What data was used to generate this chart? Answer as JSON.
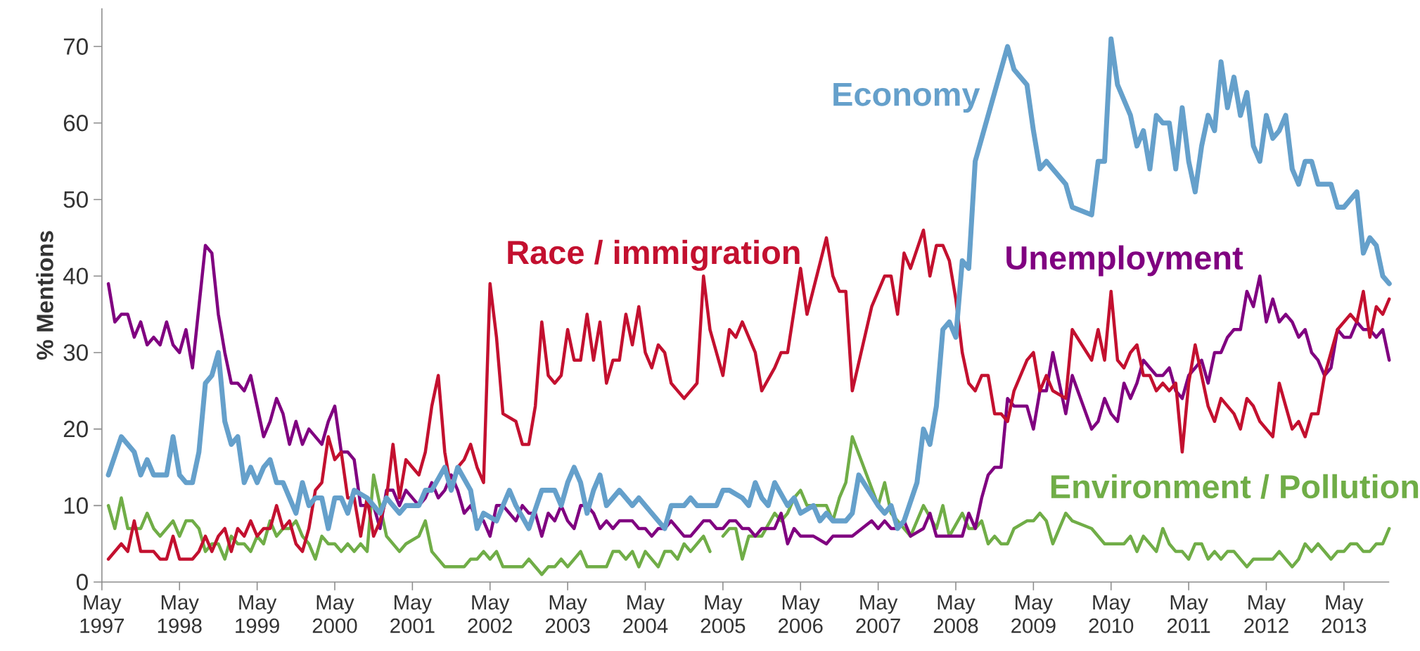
{
  "chart_data": {
    "type": "line",
    "ylabel": "% Mentions",
    "xlim": [
      "1997-05",
      "2013-12"
    ],
    "ylim": [
      0,
      75
    ],
    "xticks": [
      {
        "value": "1997-05",
        "label": "May 1997"
      },
      {
        "value": "1998-05",
        "label": "May 1998"
      },
      {
        "value": "1999-05",
        "label": "May 1999"
      },
      {
        "value": "2000-05",
        "label": "May 2000"
      },
      {
        "value": "2001-05",
        "label": "May 2001"
      },
      {
        "value": "2002-05",
        "label": "May 2002"
      },
      {
        "value": "2003-05",
        "label": "May 2003"
      },
      {
        "value": "2004-05",
        "label": "May 2004"
      },
      {
        "value": "2005-05",
        "label": "May 2005"
      },
      {
        "value": "2006-05",
        "label": "May 2006"
      },
      {
        "value": "2007-05",
        "label": "May 2007"
      },
      {
        "value": "2008-05",
        "label": "May 2008"
      },
      {
        "value": "2009-05",
        "label": "May 2009"
      },
      {
        "value": "2010-05",
        "label": "May 2010"
      },
      {
        "value": "2011-05",
        "label": "May 2011"
      },
      {
        "value": "2012-05",
        "label": "May 2012"
      },
      {
        "value": "2013-05",
        "label": "May 2013"
      }
    ],
    "yticks": [
      0,
      10,
      20,
      30,
      40,
      50,
      60,
      70
    ],
    "series": [
      {
        "name": "Economy",
        "color": "#65a0cb",
        "x": [
          "1997-06",
          "1997-08",
          "1997-10",
          "1997-11",
          "1997-12",
          "1998-01",
          "1998-03",
          "1998-04",
          "1998-05",
          "1998-06",
          "1998-07",
          "1998-08",
          "1998-09",
          "1998-10",
          "1998-11",
          "1998-12",
          "1999-01",
          "1999-02",
          "1999-03",
          "1999-04",
          "1999-05",
          "1999-06",
          "1999-07",
          "1999-08",
          "1999-09",
          "1999-11",
          "1999-12",
          "2000-01",
          "2000-02",
          "2000-03",
          "2000-04",
          "2000-05",
          "2000-06",
          "2000-07",
          "2000-08",
          "2000-10",
          "2000-11",
          "2000-12",
          "2001-01",
          "2001-03",
          "2001-04",
          "2001-06",
          "2001-07",
          "2001-08",
          "2001-10",
          "2001-11",
          "2001-12",
          "2002-02",
          "2002-03",
          "2002-04",
          "2002-06",
          "2002-08",
          "2002-09",
          "2002-11",
          "2003-01",
          "2003-03",
          "2003-04",
          "2003-05",
          "2003-06",
          "2003-07",
          "2003-08",
          "2003-09",
          "2003-10",
          "2003-11",
          "2004-01",
          "2004-03",
          "2004-04",
          "2004-06",
          "2004-08",
          "2004-09",
          "2004-11",
          "2004-12",
          "2005-01",
          "2005-04",
          "2005-05",
          "2005-06",
          "2005-08",
          "2005-09",
          "2005-10",
          "2005-11",
          "2005-12",
          "2006-01",
          "2006-03",
          "2006-04",
          "2006-05",
          "2006-07",
          "2006-08",
          "2006-09",
          "2006-10",
          "2006-12",
          "2007-01",
          "2007-02",
          "2007-05",
          "2007-06",
          "2007-07",
          "2007-08",
          "2007-09",
          "2007-11",
          "2007-12",
          "2008-01",
          "2008-02",
          "2008-03",
          "2008-04",
          "2008-05",
          "2008-06",
          "2008-07",
          "2008-08",
          "2008-09",
          "2009-01",
          "2009-02",
          "2009-04",
          "2009-05",
          "2009-06",
          "2009-07",
          "2009-10",
          "2009-11",
          "2010-02",
          "2010-03",
          "2010-04",
          "2010-05",
          "2010-06",
          "2010-08",
          "2010-09",
          "2010-10",
          "2010-11",
          "2010-12",
          "2011-01",
          "2011-02",
          "2011-03",
          "2011-04",
          "2011-05",
          "2011-06",
          "2011-07",
          "2011-08",
          "2011-09",
          "2011-10",
          "2011-11",
          "2011-12",
          "2012-01",
          "2012-02",
          "2012-03",
          "2012-04",
          "2012-05",
          "2012-06",
          "2012-07",
          "2012-08",
          "2012-09",
          "2012-10",
          "2012-11",
          "2012-12",
          "2013-01",
          "2013-03",
          "2013-04",
          "2013-05",
          "2013-07",
          "2013-08",
          "2013-09",
          "2013-10",
          "2013-11",
          "2013-12"
        ],
        "values": [
          14,
          19,
          17,
          14,
          16,
          14,
          14,
          19,
          14,
          13,
          13,
          17,
          26,
          27,
          30,
          21,
          18,
          19,
          13,
          15,
          13,
          15,
          16,
          13,
          13,
          9,
          13,
          10,
          11,
          11,
          7,
          11,
          11,
          9,
          12,
          11,
          10,
          9,
          11,
          9,
          10,
          10,
          12,
          12,
          15,
          12,
          15,
          12,
          7,
          9,
          8,
          12,
          10,
          7,
          12,
          12,
          10,
          13,
          15,
          13,
          9,
          12,
          14,
          10,
          12,
          10,
          11,
          9,
          7,
          10,
          10,
          11,
          10,
          10,
          12,
          12,
          11,
          10,
          13,
          11,
          10,
          13,
          10,
          11,
          9,
          10,
          8,
          9,
          8,
          8,
          9,
          14,
          10,
          9,
          10,
          7,
          8,
          13,
          20,
          18,
          23,
          33,
          34,
          32,
          42,
          41,
          55,
          58,
          70,
          67,
          65,
          59,
          54,
          55,
          52,
          49,
          48,
          55,
          55,
          71,
          65,
          61,
          57,
          59,
          54,
          61,
          60,
          60,
          54,
          62,
          55,
          51,
          57,
          61,
          59,
          68,
          62,
          66,
          61,
          64,
          57,
          55,
          61,
          58,
          59,
          61,
          54,
          52,
          55,
          55,
          52,
          52,
          49,
          49,
          51,
          43,
          45,
          44,
          40,
          39
        ]
      },
      {
        "name": "Race / immigration",
        "color": "#c3102f",
        "x": [
          "1997-06",
          "1997-08",
          "1997-09",
          "1997-10",
          "1997-11",
          "1998-01",
          "1998-02",
          "1998-03",
          "1998-04",
          "1998-05",
          "1998-07",
          "1998-08",
          "1998-09",
          "1998-10",
          "1998-11",
          "1998-12",
          "1999-01",
          "1999-02",
          "1999-03",
          "1999-04",
          "1999-05",
          "1999-06",
          "1999-07",
          "1999-08",
          "1999-09",
          "1999-10",
          "1999-11",
          "1999-12",
          "2000-01",
          "2000-02",
          "2000-03",
          "2000-04",
          "2000-05",
          "2000-06",
          "2000-07",
          "2000-08",
          "2000-09",
          "2000-10",
          "2000-11",
          "2000-12",
          "2001-01",
          "2001-02",
          "2001-03",
          "2001-04",
          "2001-05",
          "2001-06",
          "2001-07",
          "2001-08",
          "2001-09",
          "2001-10",
          "2001-11",
          "2001-12",
          "2002-01",
          "2002-02",
          "2002-03",
          "2002-04",
          "2002-05",
          "2002-06",
          "2002-07",
          "2002-09",
          "2002-10",
          "2002-11",
          "2002-12",
          "2003-01",
          "2003-02",
          "2003-03",
          "2003-04",
          "2003-05",
          "2003-06",
          "2003-07",
          "2003-08",
          "2003-09",
          "2003-10",
          "2003-11",
          "2003-12",
          "2004-01",
          "2004-02",
          "2004-03",
          "2004-04",
          "2004-05",
          "2004-06",
          "2004-07",
          "2004-08",
          "2004-09",
          "2004-11",
          "2005-01",
          "2005-02",
          "2005-03",
          "2005-05",
          "2005-06",
          "2005-07",
          "2005-08",
          "2005-10",
          "2005-11",
          "2006-01",
          "2006-02",
          "2006-03",
          "2006-05",
          "2006-06",
          "2006-09",
          "2006-10",
          "2006-11",
          "2006-12",
          "2007-01",
          "2007-04",
          "2007-06",
          "2007-07",
          "2007-08",
          "2007-09",
          "2007-10",
          "2007-12",
          "2008-01",
          "2008-02",
          "2008-03",
          "2008-04",
          "2008-05",
          "2008-06",
          "2008-07",
          "2008-08",
          "2008-09",
          "2008-10",
          "2008-11",
          "2008-12",
          "2009-01",
          "2009-02",
          "2009-03",
          "2009-04",
          "2009-05",
          "2009-06",
          "2009-07",
          "2009-08",
          "2009-10",
          "2009-11",
          "2010-02",
          "2010-03",
          "2010-04",
          "2010-05",
          "2010-06",
          "2010-07",
          "2010-08",
          "2010-09",
          "2010-10",
          "2010-11",
          "2010-12",
          "2011-01",
          "2011-02",
          "2011-03",
          "2011-04",
          "2011-05",
          "2011-06",
          "2011-07",
          "2011-08",
          "2011-09",
          "2011-10",
          "2011-12",
          "2012-01",
          "2012-02",
          "2012-03",
          "2012-04",
          "2012-06",
          "2012-07",
          "2012-08",
          "2012-09",
          "2012-10",
          "2012-11",
          "2012-12",
          "2013-01",
          "2013-02",
          "2013-03",
          "2013-04",
          "2013-05",
          "2013-06",
          "2013-07",
          "2013-08",
          "2013-09",
          "2013-10",
          "2013-11",
          "2013-12"
        ],
        "values": [
          3,
          5,
          4,
          8,
          4,
          4,
          3,
          3,
          6,
          3,
          3,
          4,
          6,
          4,
          6,
          7,
          4,
          7,
          6,
          8,
          6,
          7,
          7,
          10,
          7,
          8,
          5,
          4,
          7,
          12,
          13,
          19,
          16,
          17,
          11,
          11,
          6,
          11,
          6,
          8,
          11,
          18,
          11,
          16,
          15,
          14,
          17,
          23,
          27,
          17,
          12,
          15,
          16,
          18,
          15,
          13,
          39,
          32,
          22,
          21,
          18,
          18,
          23,
          34,
          27,
          26,
          27,
          33,
          29,
          29,
          35,
          29,
          34,
          26,
          29,
          29,
          35,
          31,
          36,
          30,
          28,
          31,
          30,
          26,
          24,
          26,
          40,
          33,
          27,
          33,
          32,
          34,
          30,
          25,
          28,
          30,
          30,
          41,
          35,
          45,
          40,
          38,
          38,
          25,
          36,
          40,
          40,
          35,
          43,
          41,
          46,
          40,
          44,
          44,
          42,
          37,
          30,
          26,
          25,
          27,
          27,
          22,
          22,
          21,
          25,
          27,
          29,
          30,
          25,
          27,
          25,
          24,
          33,
          29,
          33,
          29,
          38,
          29,
          28,
          30,
          31,
          27,
          27,
          25,
          26,
          25,
          26,
          17,
          26,
          31,
          27,
          23,
          21,
          24,
          22,
          20,
          24,
          23,
          21,
          19,
          26,
          23,
          20,
          21,
          19,
          22,
          22,
          27,
          30,
          33,
          34,
          35,
          34,
          38,
          32,
          36,
          35,
          37
        ]
      },
      {
        "name": "Unemployment",
        "color": "#800080",
        "x": [
          "1997-06",
          "1997-07",
          "1997-08",
          "1997-09",
          "1997-10",
          "1997-11",
          "1997-12",
          "1998-01",
          "1998-02",
          "1998-03",
          "1998-04",
          "1998-05",
          "1998-06",
          "1998-07",
          "1998-08",
          "1998-09",
          "1998-10",
          "1998-11",
          "1998-12",
          "1999-01",
          "1999-02",
          "1999-03",
          "1999-04",
          "1999-05",
          "1999-06",
          "1999-07",
          "1999-08",
          "1999-09",
          "1999-10",
          "1999-11",
          "1999-12",
          "2000-01",
          "2000-02",
          "2000-03",
          "2000-04",
          "2000-05",
          "2000-06",
          "2000-07",
          "2000-08",
          "2000-09",
          "2000-10",
          "2000-11",
          "2000-12",
          "2001-01",
          "2001-02",
          "2001-03",
          "2001-04",
          "2001-05",
          "2001-06",
          "2001-07",
          "2001-08",
          "2001-09",
          "2001-10",
          "2001-11",
          "2001-12",
          "2002-01",
          "2002-02",
          "2002-03",
          "2002-04",
          "2002-05",
          "2002-06",
          "2002-07",
          "2002-08",
          "2002-09",
          "2002-10",
          "2002-11",
          "2002-12",
          "2003-01",
          "2003-02",
          "2003-03",
          "2003-04",
          "2003-05",
          "2003-06",
          "2003-07",
          "2003-08",
          "2003-09",
          "2003-10",
          "2003-11",
          "2003-12",
          "2004-01",
          "2004-02",
          "2004-03",
          "2004-04",
          "2004-05",
          "2004-06",
          "2004-07",
          "2004-08",
          "2004-09",
          "2004-10",
          "2004-11",
          "2004-12",
          "2005-01",
          "2005-02",
          "2005-03",
          "2005-04",
          "2005-05",
          "2005-06",
          "2005-07",
          "2005-08",
          "2005-09",
          "2005-10",
          "2005-11",
          "2005-12",
          "2006-01",
          "2006-02",
          "2006-03",
          "2006-04",
          "2006-05",
          "2006-06",
          "2006-07",
          "2006-09",
          "2006-10",
          "2007-01",
          "2007-04",
          "2007-05",
          "2007-06",
          "2007-07",
          "2007-08",
          "2007-09",
          "2007-10",
          "2007-12",
          "2008-01",
          "2008-02",
          "2008-06",
          "2008-07",
          "2008-08",
          "2008-09",
          "2008-10",
          "2008-11",
          "2008-12",
          "2009-01",
          "2009-02",
          "2009-03",
          "2009-04",
          "2009-05",
          "2009-06",
          "2009-07",
          "2009-08",
          "2009-09",
          "2009-10",
          "2009-11",
          "2010-02",
          "2010-03",
          "2010-04",
          "2010-05",
          "2010-06",
          "2010-07",
          "2010-08",
          "2010-09",
          "2010-10",
          "2010-11",
          "2010-12",
          "2011-01",
          "2011-02",
          "2011-03",
          "2011-04",
          "2011-05",
          "2011-06",
          "2011-07",
          "2011-08",
          "2011-09",
          "2011-10",
          "2011-11",
          "2011-12",
          "2012-01",
          "2012-02",
          "2012-03",
          "2012-04",
          "2012-05",
          "2012-06",
          "2012-07",
          "2012-08",
          "2012-09",
          "2012-10",
          "2012-11",
          "2012-12",
          "2013-01",
          "2013-02",
          "2013-03",
          "2013-04",
          "2013-05",
          "2013-06",
          "2013-07",
          "2013-08",
          "2013-09",
          "2013-10",
          "2013-11",
          "2013-12"
        ],
        "values": [
          39,
          34,
          35,
          35,
          32,
          34,
          31,
          32,
          31,
          34,
          31,
          30,
          33,
          28,
          36,
          44,
          43,
          35,
          30,
          26,
          26,
          25,
          27,
          23,
          19,
          21,
          24,
          22,
          18,
          21,
          18,
          20,
          19,
          18,
          21,
          23,
          17,
          17,
          16,
          10,
          10,
          10,
          7,
          12,
          12,
          10,
          12,
          11,
          10,
          11,
          13,
          11,
          12,
          14,
          12,
          9,
          10,
          8,
          8,
          6,
          10,
          10,
          9,
          8,
          10,
          9,
          9,
          6,
          9,
          8,
          10,
          8,
          7,
          10,
          10,
          9,
          7,
          8,
          7,
          8,
          8,
          8,
          7,
          7,
          6,
          7,
          7,
          8,
          7,
          6,
          6,
          7,
          8,
          8,
          7,
          7,
          8,
          8,
          7,
          7,
          6,
          7,
          7,
          7,
          9,
          5,
          7,
          6,
          6,
          6,
          5,
          6,
          6,
          8,
          7,
          8,
          7,
          7,
          8,
          6,
          7,
          9,
          6,
          6,
          9,
          7,
          11,
          14,
          15,
          15,
          24,
          23,
          23,
          23,
          20,
          25,
          25,
          30,
          26,
          22,
          27,
          20,
          21,
          24,
          22,
          21,
          26,
          24,
          26,
          29,
          28,
          27,
          27,
          28,
          25,
          24,
          27,
          28,
          29,
          26,
          30,
          30,
          32,
          33,
          33,
          38,
          36,
          40,
          34,
          37,
          34,
          35,
          34,
          32,
          33,
          30,
          29,
          27,
          28,
          33,
          32,
          32,
          34,
          33,
          33,
          32,
          33,
          29
        ]
      },
      {
        "name": "Environment / Pollution",
        "color": "#70ad47",
        "x": [
          "1997-06",
          "1997-07",
          "1997-08",
          "1997-09",
          "1997-11",
          "1997-12",
          "1998-01",
          "1998-02",
          "1998-04",
          "1998-05",
          "1998-06",
          "1998-07",
          "1998-08",
          "1998-09",
          "1998-10",
          "1998-11",
          "1998-12",
          "1999-01",
          "1999-02",
          "1999-03",
          "1999-04",
          "1999-05",
          "1999-06",
          "1999-07",
          "1999-08",
          "1999-09",
          "1999-10",
          "1999-11",
          "1999-12",
          "2000-01",
          "2000-02",
          "2000-03",
          "2000-04",
          "2000-05",
          "2000-06",
          "2000-07",
          "2000-08",
          "2000-09",
          "2000-10",
          "2000-11",
          "2001-01",
          "2001-03",
          "2001-04",
          "2001-06",
          "2001-07",
          "2001-08",
          "2001-10",
          "2002-01",
          "2002-02",
          "2002-03",
          "2002-04",
          "2002-05",
          "2002-06",
          "2002-07",
          "2002-10",
          "2002-11",
          "2003-01",
          "2003-02",
          "2003-03",
          "2003-04",
          "2003-05",
          "2003-07",
          "2003-08",
          "2003-11",
          "2003-12",
          "2004-01",
          "2004-02",
          "2004-03",
          "2004-04",
          "2004-05",
          "2004-07",
          "2004-08",
          "2004-09",
          "2004-10",
          "2004-11",
          "2004-12",
          "2005-02",
          "2005-03",
          "2005-04",
          "2005-05",
          "2005-06",
          "2005-07",
          "2005-08",
          "2005-09",
          "2005-11",
          "2006-01",
          "2006-02",
          "2006-03",
          "2006-04",
          "2006-05",
          "2006-06",
          "2006-09",
          "2006-10",
          "2006-11",
          "2006-12",
          "2007-01",
          "2007-05",
          "2007-06",
          "2007-07",
          "2007-10",
          "2007-12",
          "2008-02",
          "2008-03",
          "2008-04",
          "2008-06",
          "2008-07",
          "2008-08",
          "2008-09",
          "2008-10",
          "2008-11",
          "2008-12",
          "2009-01",
          "2009-02",
          "2009-04",
          "2009-05",
          "2009-06",
          "2009-07",
          "2009-08",
          "2009-10",
          "2009-11",
          "2010-02",
          "2010-04",
          "2010-07",
          "2010-08",
          "2010-09",
          "2010-10",
          "2010-12",
          "2011-01",
          "2011-02",
          "2011-03",
          "2011-04",
          "2011-05",
          "2011-06",
          "2011-07",
          "2011-08",
          "2011-09",
          "2011-10",
          "2011-11",
          "2011-12",
          "2012-02",
          "2012-03",
          "2012-06",
          "2012-07",
          "2012-09",
          "2012-10",
          "2012-11",
          "2012-12",
          "2013-01",
          "2013-03",
          "2013-04",
          "2013-05",
          "2013-06",
          "2013-07",
          "2013-08",
          "2013-09",
          "2013-10",
          "2013-11",
          "2013-12"
        ],
        "values": [
          10,
          7,
          11,
          7,
          7,
          9,
          7,
          6,
          8,
          6,
          8,
          8,
          7,
          4,
          5,
          5,
          3,
          6,
          5,
          5,
          4,
          6,
          5,
          8,
          6,
          7,
          7,
          8,
          6,
          5,
          3,
          6,
          5,
          5,
          4,
          5,
          4,
          5,
          4,
          14,
          6,
          4,
          5,
          6,
          8,
          4,
          2,
          2,
          3,
          3,
          4,
          3,
          4,
          2,
          2,
          3,
          1,
          2,
          2,
          3,
          2,
          4,
          2,
          2,
          4,
          4,
          3,
          4,
          2,
          4,
          2,
          4,
          4,
          3,
          5,
          4,
          6,
          4,
          null,
          6,
          7,
          7,
          3,
          6,
          6,
          9,
          8,
          9,
          11,
          12,
          10,
          10,
          8,
          11,
          13,
          19,
          10,
          13,
          9,
          6,
          10,
          7,
          10,
          6,
          9,
          7,
          7,
          8,
          5,
          6,
          5,
          5,
          7,
          8,
          8,
          9,
          8,
          5,
          9,
          8,
          7,
          5,
          5,
          6,
          4,
          6,
          4,
          7,
          5,
          4,
          4,
          3,
          5,
          5,
          3,
          4,
          3,
          4,
          4,
          2,
          3,
          3,
          4,
          2,
          3,
          5,
          4,
          5,
          3,
          4,
          4,
          5,
          5,
          4,
          4,
          5,
          5,
          7
        ]
      }
    ]
  }
}
